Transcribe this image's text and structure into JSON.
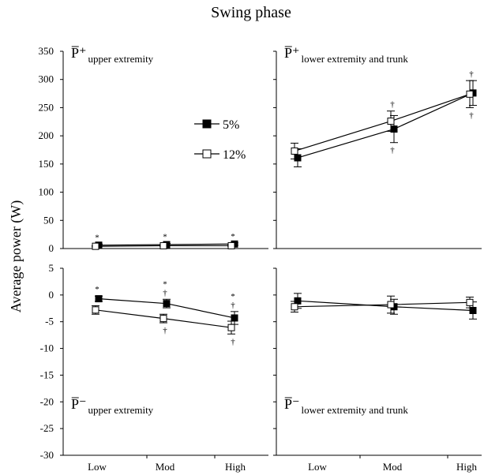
{
  "title": "Swing phase",
  "ylabel": "Average power (W)",
  "legend": [
    {
      "name": "5%",
      "marker": "filled-square"
    },
    {
      "name": "12%",
      "marker": "open-square"
    }
  ],
  "chart_data": {
    "type": "line",
    "title": "Swing phase",
    "ylabel": "Average power (W)",
    "categories": [
      "Low",
      "Mod",
      "High"
    ],
    "panels": [
      {
        "id": "top-left",
        "label_main": "P̅⁺",
        "label_sub": "upper extremity",
        "ylim": [
          0,
          350
        ],
        "yticks": [
          0,
          50,
          100,
          150,
          200,
          250,
          300,
          350
        ],
        "series": [
          {
            "name": "5%",
            "values": [
              6,
              7,
              8
            ],
            "err": [
              2,
              2,
              2
            ]
          },
          {
            "name": "12%",
            "values": [
              4,
              5,
              5
            ],
            "err": [
              1,
              1,
              1
            ]
          }
        ],
        "annotations": [
          {
            "category": "Low",
            "above": [
              "*"
            ],
            "below": []
          },
          {
            "category": "Mod",
            "above": [
              "*"
            ],
            "below": []
          },
          {
            "category": "High",
            "above": [
              "*"
            ],
            "below": []
          }
        ]
      },
      {
        "id": "top-right",
        "label_main": "P̅⁺",
        "label_sub": "lower extremity and trunk",
        "ylim": [
          0,
          350
        ],
        "yticks": [],
        "series": [
          {
            "name": "5%",
            "values": [
              161,
              212,
              276
            ],
            "err": [
              16,
              24,
              22
            ]
          },
          {
            "name": "12%",
            "values": [
              173,
              226,
              274
            ],
            "err": [
              14,
              18,
              24
            ]
          }
        ],
        "annotations": [
          {
            "category": "Low",
            "above": [],
            "below": []
          },
          {
            "category": "Mod",
            "above": [
              "†"
            ],
            "below": [
              "†"
            ]
          },
          {
            "category": "High",
            "above": [
              "†"
            ],
            "below": [
              "†"
            ]
          }
        ]
      },
      {
        "id": "bottom-left",
        "label_main": "P̅⁻",
        "label_sub": "upper extremity",
        "ylim": [
          -30,
          5
        ],
        "yticks": [
          5,
          0,
          -5,
          -10,
          -15,
          -20,
          -25,
          -30
        ],
        "series": [
          {
            "name": "5%",
            "values": [
              -0.7,
              -1.6,
              -4.3
            ],
            "err": [
              0.5,
              0.8,
              1.2
            ]
          },
          {
            "name": "12%",
            "values": [
              -2.8,
              -4.4,
              -6.1
            ],
            "err": [
              0.8,
              0.8,
              1.2
            ]
          }
        ],
        "annotations": [
          {
            "category": "Low",
            "above": [
              "*"
            ],
            "below": []
          },
          {
            "category": "Mod",
            "above": [
              "*",
              "†"
            ],
            "below": [
              "†"
            ]
          },
          {
            "category": "High",
            "above": [
              "*",
              "†"
            ],
            "below": [
              "†"
            ]
          }
        ]
      },
      {
        "id": "bottom-right",
        "label_main": "P̅⁻",
        "label_sub": "lower extremity and trunk",
        "ylim": [
          -30,
          5
        ],
        "yticks": [],
        "series": [
          {
            "name": "5%",
            "values": [
              -1.1,
              -2.2,
              -2.9
            ],
            "err": [
              1.4,
              1.4,
              1.6
            ]
          },
          {
            "name": "12%",
            "values": [
              -2.2,
              -1.8,
              -1.4
            ],
            "err": [
              1.0,
              1.6,
              1.0
            ]
          }
        ],
        "annotations": []
      }
    ],
    "legend_location": "top-left panel",
    "grid": false
  }
}
